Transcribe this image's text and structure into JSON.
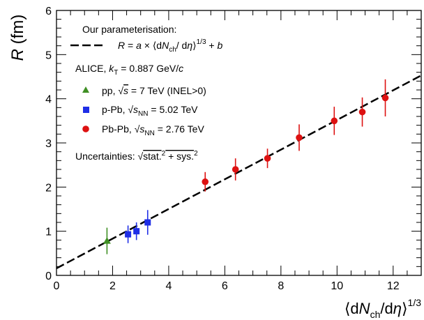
{
  "chart_data": {
    "type": "scatter",
    "xlabel": "⟨dN_ch/dη⟩^1/3",
    "ylabel": "R (fm)",
    "xlim": [
      0,
      13
    ],
    "ylim": [
      0,
      6
    ],
    "x_ticks": [
      "0",
      "2",
      "4",
      "6",
      "8",
      "10",
      "12"
    ],
    "y_ticks": [
      "0",
      "1",
      "2",
      "3",
      "4",
      "5",
      "6"
    ],
    "grid": false,
    "legend_position": "top-left",
    "legend": {
      "param_title": "Our parameterisation:",
      "fit_label": "R = a × ⟨dN_ch/dη⟩^1/3 + b",
      "alice_label": "ALICE, k_T = 0.887 GeV/c",
      "uncertainties_label": "Uncertainties: √(stat.² + sys.²)"
    },
    "fit_line": {
      "name": "R = a × ⟨dN_ch/dη⟩^1/3 + b",
      "a": 0.336,
      "b": 0.16,
      "style": "dashed",
      "color": "#000000"
    },
    "series": [
      {
        "name": "pp, √s = 7 TeV (INEL>0)",
        "marker": "triangle",
        "color": "#3f8f24",
        "points": [
          {
            "x": 1.8,
            "y": 0.78,
            "err": 0.3
          }
        ]
      },
      {
        "name": "p-Pb, √s_NN = 5.02 TeV",
        "marker": "square",
        "color": "#1f2ee6",
        "points": [
          {
            "x": 2.55,
            "y": 0.93,
            "err": 0.2
          },
          {
            "x": 2.85,
            "y": 1.0,
            "err": 0.2
          },
          {
            "x": 3.25,
            "y": 1.2,
            "err": 0.28
          }
        ]
      },
      {
        "name": "Pb-Pb, √s_NN = 2.76 TeV",
        "marker": "circle",
        "color": "#dd1111",
        "points": [
          {
            "x": 5.3,
            "y": 2.12,
            "err": 0.22
          },
          {
            "x": 6.38,
            "y": 2.4,
            "err": 0.25
          },
          {
            "x": 7.52,
            "y": 2.65,
            "err": 0.22
          },
          {
            "x": 8.65,
            "y": 3.12,
            "err": 0.3
          },
          {
            "x": 9.9,
            "y": 3.5,
            "err": 0.32
          },
          {
            "x": 10.9,
            "y": 3.7,
            "err": 0.33
          },
          {
            "x": 11.72,
            "y": 4.02,
            "err": 0.42
          }
        ]
      }
    ]
  }
}
